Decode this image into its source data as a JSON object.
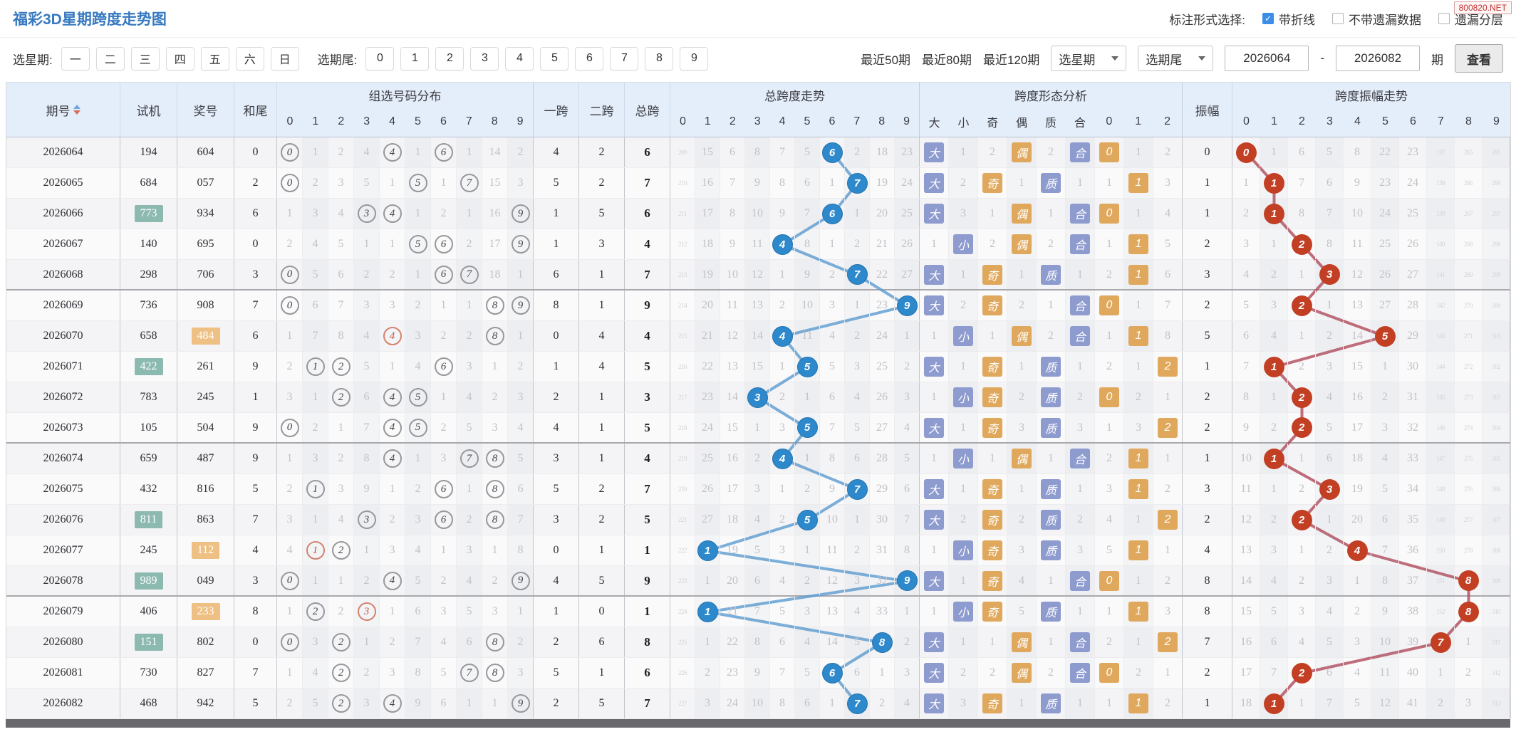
{
  "badge": "800820.NET",
  "header": {
    "title": "福彩3D星期跨度走势图",
    "annotation_label": "标注形式选择:",
    "checkboxes": [
      {
        "label": "带折线",
        "checked": true
      },
      {
        "label": "不带遗漏数据",
        "checked": false
      },
      {
        "label": "遗漏分层",
        "checked": false
      }
    ]
  },
  "filters": {
    "week_label": "选星期:",
    "week_options": [
      "一",
      "二",
      "三",
      "四",
      "五",
      "六",
      "日"
    ],
    "tail_label": "选期尾:",
    "tail_options": [
      "0",
      "1",
      "2",
      "3",
      "4",
      "5",
      "6",
      "7",
      "8",
      "9"
    ],
    "recent": [
      "最近50期",
      "最近80期",
      "最近120期"
    ],
    "select_week": "选星期",
    "select_tail": "选期尾",
    "range_from": "2026064",
    "range_dash": "-",
    "range_to": "2026082",
    "period_suffix": "期",
    "view_button": "查看"
  },
  "table": {
    "col_period": "期号",
    "col_test": "试机",
    "col_prize": "奖号",
    "col_sumtail": "和尾",
    "grp_dist": "组选号码分布",
    "col_k1": "一跨",
    "col_k2": "二跨",
    "col_kt": "总跨",
    "grp_span": "总跨度走势",
    "grp_shape": "跨度形态分析",
    "col_amp": "振幅",
    "grp_ampt": "跨度振幅走势",
    "digits": [
      "0",
      "1",
      "2",
      "3",
      "4",
      "5",
      "6",
      "7",
      "8",
      "9"
    ],
    "shape_cols": [
      "大",
      "小",
      "奇",
      "偶",
      "质",
      "合",
      "0",
      "1",
      "2"
    ],
    "accent_blue": "#2d89cb",
    "accent_red": "#c23f24",
    "badge_blue": "#8e9bce",
    "badge_orange": "#e0a85c"
  },
  "rows": [
    {
      "period": "2026064",
      "test": "194",
      "test_hl": false,
      "prize": "604",
      "prize_hl": false,
      "tail": "0",
      "dist": [
        "0:h",
        "1",
        "2",
        "4",
        "4:h",
        "1",
        "6:h",
        "1",
        "14",
        "2"
      ],
      "k1": "4",
      "k2": "2",
      "kt": "6",
      "span": [
        "209:s",
        "15",
        "6",
        "8",
        "7",
        "5",
        "6:h",
        "2",
        "18",
        "23"
      ],
      "shape": [
        "大:b",
        "1",
        "2",
        "偶:o",
        "2",
        "合:b",
        "0:o",
        "1",
        "2"
      ],
      "amp": "0",
      "ampt": [
        "0:h",
        "1",
        "6",
        "5",
        "8",
        "22",
        "23",
        "137:s",
        "265:s",
        "295:s"
      ]
    },
    {
      "period": "2026065",
      "test": "684",
      "test_hl": false,
      "prize": "057",
      "prize_hl": false,
      "tail": "2",
      "dist": [
        "0:h",
        "2",
        "3",
        "5",
        "1",
        "5:h",
        "1",
        "7:h",
        "15",
        "3"
      ],
      "k1": "5",
      "k2": "2",
      "kt": "7",
      "span": [
        "210:s",
        "16",
        "7",
        "9",
        "8",
        "6",
        "1",
        "7:h",
        "19",
        "24"
      ],
      "shape": [
        "大:b",
        "2",
        "奇:o",
        "1",
        "质:b",
        "1",
        "1",
        "1:o",
        "3"
      ],
      "amp": "1",
      "ampt": [
        "1",
        "1:h",
        "7",
        "6",
        "9",
        "23",
        "24",
        "138:s",
        "266:s",
        "296:s"
      ]
    },
    {
      "period": "2026066",
      "test": "773",
      "test_hl": true,
      "prize": "934",
      "prize_hl": false,
      "tail": "6",
      "dist": [
        "1",
        "3",
        "4",
        "3:h",
        "4:h",
        "1",
        "2",
        "1",
        "16",
        "9:h"
      ],
      "k1": "1",
      "k2": "5",
      "kt": "6",
      "span": [
        "211:s",
        "17",
        "8",
        "10",
        "9",
        "7",
        "6:h",
        "1",
        "20",
        "25"
      ],
      "shape": [
        "大:b",
        "3",
        "1",
        "偶:o",
        "1",
        "合:b",
        "0:o",
        "1",
        "4"
      ],
      "amp": "1",
      "ampt": [
        "2",
        "1:h",
        "8",
        "7",
        "10",
        "24",
        "25",
        "139:s",
        "267:s",
        "297:s"
      ]
    },
    {
      "period": "2026067",
      "test": "140",
      "test_hl": false,
      "prize": "695",
      "prize_hl": false,
      "tail": "0",
      "dist": [
        "2",
        "4",
        "5",
        "1",
        "1",
        "5:h",
        "6:h",
        "2",
        "17",
        "9:h"
      ],
      "k1": "1",
      "k2": "3",
      "kt": "4",
      "span": [
        "212:s",
        "18",
        "9",
        "11",
        "4:h",
        "8",
        "1",
        "2",
        "21",
        "26"
      ],
      "shape": [
        "1",
        "小:b",
        "2",
        "偶:o",
        "2",
        "合:b",
        "1",
        "1:o",
        "5"
      ],
      "amp": "2",
      "ampt": [
        "3",
        "1",
        "2:h",
        "8",
        "11",
        "25",
        "26",
        "140:s",
        "268:s",
        "298:s"
      ]
    },
    {
      "period": "2026068",
      "test": "298",
      "test_hl": false,
      "prize": "706",
      "prize_hl": false,
      "tail": "3",
      "dist": [
        "0:h",
        "5",
        "6",
        "2",
        "2",
        "1",
        "6:h",
        "7:h",
        "18",
        "1"
      ],
      "k1": "6",
      "k2": "1",
      "kt": "7",
      "span": [
        "213:s",
        "19",
        "10",
        "12",
        "1",
        "9",
        "2",
        "7:h",
        "22",
        "27"
      ],
      "shape": [
        "大:b",
        "1",
        "奇:o",
        "1",
        "质:b",
        "1",
        "2",
        "1:o",
        "6"
      ],
      "amp": "3",
      "ampt": [
        "4",
        "2",
        "1",
        "3:h",
        "12",
        "26",
        "27",
        "141:s",
        "269:s",
        "299:s"
      ]
    },
    {
      "period": "2026069",
      "test": "736",
      "test_hl": false,
      "prize": "908",
      "prize_hl": false,
      "tail": "7",
      "dist": [
        "0:h",
        "6",
        "7",
        "3",
        "3",
        "2",
        "1",
        "1",
        "8:h",
        "9:h"
      ],
      "k1": "8",
      "k2": "1",
      "kt": "9",
      "span": [
        "214:s",
        "20",
        "11",
        "13",
        "2",
        "10",
        "3",
        "1",
        "23",
        "9:h"
      ],
      "shape": [
        "大:b",
        "2",
        "奇:o",
        "2",
        "1",
        "合:b",
        "0:o",
        "1",
        "7"
      ],
      "amp": "2",
      "ampt": [
        "5",
        "3",
        "2:h",
        "1",
        "13",
        "27",
        "28",
        "142:s",
        "270:s",
        "300:s"
      ]
    },
    {
      "period": "2026070",
      "test": "658",
      "test_hl": false,
      "prize": "484",
      "prize_hl": true,
      "tail": "6",
      "dist": [
        "1",
        "7",
        "8",
        "4",
        "4:r",
        "3",
        "2",
        "2",
        "8:h",
        "1"
      ],
      "k1": "0",
      "k2": "4",
      "kt": "4",
      "span": [
        "215:s",
        "21",
        "12",
        "14",
        "4:h",
        "11",
        "4",
        "2",
        "24",
        "1"
      ],
      "shape": [
        "1",
        "小:b",
        "1",
        "偶:o",
        "2",
        "合:b",
        "1",
        "1:o",
        "8"
      ],
      "amp": "5",
      "ampt": [
        "6",
        "4",
        "1",
        "2",
        "14",
        "5:h",
        "29",
        "143:s",
        "271:s",
        "301:s"
      ]
    },
    {
      "period": "2026071",
      "test": "422",
      "test_hl": true,
      "prize": "261",
      "prize_hl": false,
      "tail": "9",
      "dist": [
        "2",
        "1:h",
        "2:h",
        "5",
        "1",
        "4",
        "6:h",
        "3",
        "1",
        "2"
      ],
      "k1": "1",
      "k2": "4",
      "kt": "5",
      "span": [
        "216:s",
        "22",
        "13",
        "15",
        "1",
        "5:h",
        "5",
        "3",
        "25",
        "2"
      ],
      "shape": [
        "大:b",
        "1",
        "奇:o",
        "1",
        "质:b",
        "1",
        "2",
        "1",
        "2:o"
      ],
      "amp": "1",
      "ampt": [
        "7",
        "1:h",
        "2",
        "3",
        "15",
        "1",
        "30",
        "144:s",
        "272:s",
        "302:s"
      ]
    },
    {
      "period": "2026072",
      "test": "783",
      "test_hl": false,
      "prize": "245",
      "prize_hl": false,
      "tail": "1",
      "dist": [
        "3",
        "1",
        "2:h",
        "6",
        "4:h",
        "5:h",
        "1",
        "4",
        "2",
        "3"
      ],
      "k1": "2",
      "k2": "1",
      "kt": "3",
      "span": [
        "217:s",
        "23",
        "14",
        "3:h",
        "2",
        "1",
        "6",
        "4",
        "26",
        "3"
      ],
      "shape": [
        "1",
        "小:b",
        "奇:o",
        "2",
        "质:b",
        "2",
        "0:o",
        "2",
        "1"
      ],
      "amp": "2",
      "ampt": [
        "8",
        "1",
        "2:h",
        "4",
        "16",
        "2",
        "31",
        "145:s",
        "273:s",
        "303:s"
      ]
    },
    {
      "period": "2026073",
      "test": "105",
      "test_hl": false,
      "prize": "504",
      "prize_hl": false,
      "tail": "9",
      "dist": [
        "0:h",
        "2",
        "1",
        "7",
        "4:h",
        "5:h",
        "2",
        "5",
        "3",
        "4"
      ],
      "k1": "4",
      "k2": "1",
      "kt": "5",
      "span": [
        "218:s",
        "24",
        "15",
        "1",
        "3",
        "5:h",
        "7",
        "5",
        "27",
        "4"
      ],
      "shape": [
        "大:b",
        "1",
        "奇:o",
        "3",
        "质:b",
        "3",
        "1",
        "3",
        "2:o"
      ],
      "amp": "2",
      "ampt": [
        "9",
        "2",
        "2:h",
        "5",
        "17",
        "3",
        "32",
        "146:s",
        "274:s",
        "304:s"
      ]
    },
    {
      "period": "2026074",
      "test": "659",
      "test_hl": false,
      "prize": "487",
      "prize_hl": false,
      "tail": "9",
      "dist": [
        "1",
        "3",
        "2",
        "8",
        "4:h",
        "1",
        "3",
        "7:h",
        "8:h",
        "5"
      ],
      "k1": "3",
      "k2": "1",
      "kt": "4",
      "span": [
        "219:s",
        "25",
        "16",
        "2",
        "4:h",
        "1",
        "8",
        "6",
        "28",
        "5"
      ],
      "shape": [
        "1",
        "小:b",
        "1",
        "偶:o",
        "1",
        "合:b",
        "2",
        "1:o",
        "1"
      ],
      "amp": "1",
      "ampt": [
        "10",
        "1:h",
        "1",
        "6",
        "18",
        "4",
        "33",
        "147:s",
        "275:s",
        "305:s"
      ]
    },
    {
      "period": "2026075",
      "test": "432",
      "test_hl": false,
      "prize": "816",
      "prize_hl": false,
      "tail": "5",
      "dist": [
        "2",
        "1:h",
        "3",
        "9",
        "1",
        "2",
        "6:h",
        "1",
        "8:h",
        "6"
      ],
      "k1": "5",
      "k2": "2",
      "kt": "7",
      "span": [
        "220:s",
        "26",
        "17",
        "3",
        "1",
        "2",
        "9",
        "7:h",
        "29",
        "6"
      ],
      "shape": [
        "大:b",
        "1",
        "奇:o",
        "1",
        "质:b",
        "1",
        "3",
        "1:o",
        "2"
      ],
      "amp": "3",
      "ampt": [
        "11",
        "1",
        "2",
        "3:h",
        "19",
        "5",
        "34",
        "148:s",
        "276:s",
        "306:s"
      ]
    },
    {
      "period": "2026076",
      "test": "811",
      "test_hl": true,
      "prize": "863",
      "prize_hl": false,
      "tail": "7",
      "dist": [
        "3",
        "1",
        "4",
        "3:h",
        "2",
        "3",
        "6:h",
        "2",
        "8:h",
        "7"
      ],
      "k1": "3",
      "k2": "2",
      "kt": "5",
      "span": [
        "221:s",
        "27",
        "18",
        "4",
        "2",
        "5:h",
        "10",
        "1",
        "30",
        "7"
      ],
      "shape": [
        "大:b",
        "2",
        "奇:o",
        "2",
        "质:b",
        "2",
        "4",
        "1",
        "2:o"
      ],
      "amp": "2",
      "ampt": [
        "12",
        "2",
        "2:h",
        "1",
        "20",
        "6",
        "35",
        "149:s",
        "277:s",
        "307:s"
      ]
    },
    {
      "period": "2026077",
      "test": "245",
      "test_hl": false,
      "prize": "112",
      "prize_hl": true,
      "tail": "4",
      "dist": [
        "4",
        "1:r",
        "2:h",
        "1",
        "3",
        "4",
        "1",
        "3",
        "1",
        "8"
      ],
      "k1": "0",
      "k2": "1",
      "kt": "1",
      "span": [
        "222:s",
        "1:h",
        "19",
        "5",
        "3",
        "1",
        "11",
        "2",
        "31",
        "8"
      ],
      "shape": [
        "1",
        "小:b",
        "奇:o",
        "3",
        "质:b",
        "3",
        "5",
        "1:o",
        "1"
      ],
      "amp": "4",
      "ampt": [
        "13",
        "3",
        "1",
        "2",
        "4:h",
        "7",
        "36",
        "150:s",
        "278:s",
        "308:s"
      ]
    },
    {
      "period": "2026078",
      "test": "989",
      "test_hl": true,
      "prize": "049",
      "prize_hl": false,
      "tail": "3",
      "dist": [
        "0:h",
        "1",
        "1",
        "2",
        "4:h",
        "5",
        "2",
        "4",
        "2",
        "9:h"
      ],
      "k1": "4",
      "k2": "5",
      "kt": "9",
      "span": [
        "223:s",
        "1",
        "20",
        "6",
        "4",
        "2",
        "12",
        "3",
        "32",
        "9:h"
      ],
      "shape": [
        "大:b",
        "1",
        "奇:o",
        "4",
        "1",
        "合:b",
        "0:o",
        "1",
        "2"
      ],
      "amp": "8",
      "ampt": [
        "14",
        "4",
        "2",
        "3",
        "1",
        "8",
        "37",
        "151:s",
        "8:h",
        "309:s"
      ]
    },
    {
      "period": "2026079",
      "test": "406",
      "test_hl": false,
      "prize": "233",
      "prize_hl": true,
      "tail": "8",
      "dist": [
        "1",
        "2:h",
        "2",
        "3:r",
        "1",
        "6",
        "3",
        "5",
        "3",
        "1"
      ],
      "k1": "1",
      "k2": "0",
      "kt": "1",
      "span": [
        "224:s",
        "1:h",
        "21",
        "7",
        "5",
        "3",
        "13",
        "4",
        "33",
        "1"
      ],
      "shape": [
        "1",
        "小:b",
        "奇:o",
        "5",
        "质:b",
        "1",
        "1",
        "1:o",
        "3"
      ],
      "amp": "8",
      "ampt": [
        "15",
        "5",
        "3",
        "4",
        "2",
        "9",
        "38",
        "152:s",
        "8:h",
        "310:s"
      ]
    },
    {
      "period": "2026080",
      "test": "151",
      "test_hl": true,
      "prize": "802",
      "prize_hl": false,
      "tail": "0",
      "dist": [
        "0:h",
        "3",
        "2:h",
        "1",
        "2",
        "7",
        "4",
        "6",
        "8:h",
        "2"
      ],
      "k1": "2",
      "k2": "6",
      "kt": "8",
      "span": [
        "225:s",
        "1",
        "22",
        "8",
        "6",
        "4",
        "14",
        "5",
        "8:h",
        "2"
      ],
      "shape": [
        "大:b",
        "1",
        "1",
        "偶:o",
        "1",
        "合:b",
        "2",
        "1",
        "2:o"
      ],
      "amp": "7",
      "ampt": [
        "16",
        "6",
        "4",
        "5",
        "3",
        "10",
        "39",
        "7:h",
        "1",
        "311:s"
      ]
    },
    {
      "period": "2026081",
      "test": "730",
      "test_hl": false,
      "prize": "827",
      "prize_hl": false,
      "tail": "7",
      "dist": [
        "1",
        "4",
        "2:h",
        "2",
        "3",
        "8",
        "5",
        "7:h",
        "8:h",
        "3"
      ],
      "k1": "5",
      "k2": "1",
      "kt": "6",
      "span": [
        "226:s",
        "2",
        "23",
        "9",
        "7",
        "5",
        "6:h",
        "6",
        "1",
        "3"
      ],
      "shape": [
        "大:b",
        "2",
        "2",
        "偶:o",
        "2",
        "合:b",
        "0:o",
        "2",
        "1"
      ],
      "amp": "2",
      "ampt": [
        "17",
        "7",
        "2:h",
        "6",
        "4",
        "11",
        "40",
        "1",
        "2",
        "312:s"
      ]
    },
    {
      "period": "2026082",
      "test": "468",
      "test_hl": false,
      "prize": "942",
      "prize_hl": false,
      "tail": "5",
      "dist": [
        "2",
        "5",
        "2:h",
        "3",
        "4:h",
        "9",
        "6",
        "1",
        "1",
        "9:h"
      ],
      "k1": "2",
      "k2": "5",
      "kt": "7",
      "span": [
        "227:s",
        "3",
        "24",
        "10",
        "8",
        "6",
        "1",
        "7:h",
        "2",
        "4"
      ],
      "shape": [
        "大:b",
        "3",
        "奇:o",
        "1",
        "质:b",
        "1",
        "1",
        "1:o",
        "2"
      ],
      "amp": "1",
      "ampt": [
        "18",
        "1:h",
        "1",
        "7",
        "5",
        "12",
        "41",
        "2",
        "3",
        "313:s"
      ]
    }
  ]
}
